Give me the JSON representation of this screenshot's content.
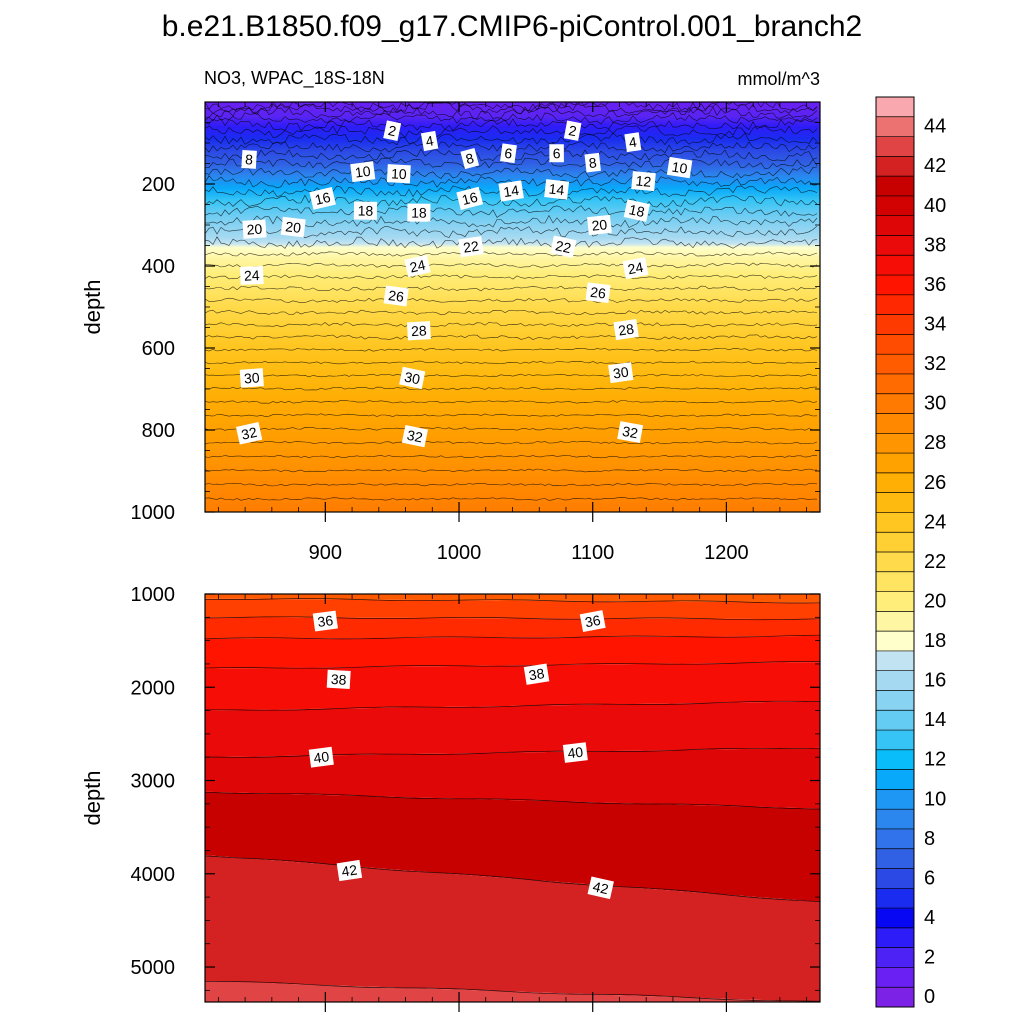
{
  "chart_data": {
    "type": "contour",
    "title": "b.e21.B1850.f09_g17.CMIP6-piControl.001_branch2",
    "variable_label": "NO3, WPAC_18S-18N",
    "units_label": "mmol/m^3",
    "colorbar": {
      "levels": [
        0,
        2,
        4,
        6,
        8,
        10,
        12,
        14,
        16,
        18,
        20,
        22,
        24,
        26,
        28,
        30,
        32,
        34,
        36,
        38,
        40,
        42,
        44
      ],
      "tick_labels": [
        "0",
        "2",
        "4",
        "6",
        "8",
        "10",
        "12",
        "14",
        "16",
        "18",
        "20",
        "22",
        "24",
        "26",
        "28",
        "30",
        "32",
        "34",
        "36",
        "38",
        "40",
        "42",
        "44"
      ],
      "colors": [
        "#7B22E6",
        "#6A20F2",
        "#4C22F5",
        "#2E1CF8",
        "#0707F4",
        "#1A2CF0",
        "#2B4AE5",
        "#3060E3",
        "#3073EA",
        "#2B86EE",
        "#1E97F4",
        "#08A8FA",
        "#08BDF9",
        "#35C4F5",
        "#64CBF3",
        "#88D2F2",
        "#A5D9F1",
        "#C1E3F2",
        "#FFFFCC",
        "#FFF6A4",
        "#FFEE79",
        "#FFE462",
        "#FFDA4A",
        "#FFD034",
        "#FFC520",
        "#FFBA10",
        "#FFAE04",
        "#FFA200",
        "#FF9500",
        "#FF8800",
        "#FF7A00",
        "#FF6B00",
        "#FF5C00",
        "#FF4C00",
        "#FF3A00",
        "#FF2800",
        "#FF1400",
        "#F60E06",
        "#EA0A0A",
        "#DE0606",
        "#D20202",
        "#C70000",
        "#D42222",
        "#E04444",
        "#EC7272",
        "#F8A8AE"
      ]
    },
    "panels": [
      {
        "name": "upper",
        "xlim": [
          810,
          1270
        ],
        "ylim": [
          1000,
          0
        ],
        "x_ticks": [
          900,
          1000,
          1100,
          1200
        ],
        "y_ticks": [
          200,
          400,
          600,
          800,
          1000
        ],
        "ylabel": "depth",
        "contour_labels": [
          {
            "text": "2",
            "x": 950,
            "y": 70
          },
          {
            "text": "4",
            "x": 978,
            "y": 95
          },
          {
            "text": "2",
            "x": 1085,
            "y": 70
          },
          {
            "text": "4",
            "x": 1130,
            "y": 98
          },
          {
            "text": "8",
            "x": 843,
            "y": 140
          },
          {
            "text": "10",
            "x": 928,
            "y": 170
          },
          {
            "text": "10",
            "x": 955,
            "y": 175
          },
          {
            "text": "8",
            "x": 1008,
            "y": 138
          },
          {
            "text": "6",
            "x": 1037,
            "y": 125
          },
          {
            "text": "6",
            "x": 1073,
            "y": 125
          },
          {
            "text": "8",
            "x": 1100,
            "y": 148
          },
          {
            "text": "10",
            "x": 1165,
            "y": 160
          },
          {
            "text": "12",
            "x": 1138,
            "y": 193
          },
          {
            "text": "16",
            "x": 898,
            "y": 235
          },
          {
            "text": "18",
            "x": 930,
            "y": 265
          },
          {
            "text": "18",
            "x": 970,
            "y": 270
          },
          {
            "text": "16",
            "x": 1008,
            "y": 235
          },
          {
            "text": "14",
            "x": 1039,
            "y": 217
          },
          {
            "text": "14",
            "x": 1073,
            "y": 213
          },
          {
            "text": "18",
            "x": 1133,
            "y": 265
          },
          {
            "text": "20",
            "x": 847,
            "y": 310
          },
          {
            "text": "20",
            "x": 876,
            "y": 305
          },
          {
            "text": "20",
            "x": 1105,
            "y": 300
          },
          {
            "text": "22",
            "x": 1009,
            "y": 353
          },
          {
            "text": "22",
            "x": 1078,
            "y": 353
          },
          {
            "text": "24",
            "x": 845,
            "y": 423
          },
          {
            "text": "24",
            "x": 969,
            "y": 400
          },
          {
            "text": "24",
            "x": 1132,
            "y": 405
          },
          {
            "text": "26",
            "x": 953,
            "y": 473
          },
          {
            "text": "26",
            "x": 1104,
            "y": 465
          },
          {
            "text": "28",
            "x": 970,
            "y": 558
          },
          {
            "text": "28",
            "x": 1125,
            "y": 555
          },
          {
            "text": "30",
            "x": 845,
            "y": 673
          },
          {
            "text": "30",
            "x": 965,
            "y": 673
          },
          {
            "text": "30",
            "x": 1121,
            "y": 660
          },
          {
            "text": "32",
            "x": 843,
            "y": 808
          },
          {
            "text": "32",
            "x": 967,
            "y": 815
          },
          {
            "text": "32",
            "x": 1128,
            "y": 805
          }
        ]
      },
      {
        "name": "lower",
        "xlim": [
          810,
          1270
        ],
        "ylim": [
          5375,
          1000
        ],
        "x_ticks": [
          900,
          1000,
          1100,
          1200
        ],
        "y_ticks": [
          1000,
          2000,
          3000,
          4000,
          5000
        ],
        "ylabel": "depth",
        "contour_labels": [
          {
            "text": "36",
            "x": 900,
            "y": 1290
          },
          {
            "text": "36",
            "x": 1100,
            "y": 1290
          },
          {
            "text": "38",
            "x": 910,
            "y": 1915
          },
          {
            "text": "38",
            "x": 1058,
            "y": 1860
          },
          {
            "text": "40",
            "x": 897,
            "y": 2750
          },
          {
            "text": "40",
            "x": 1087,
            "y": 2700
          },
          {
            "text": "42",
            "x": 918,
            "y": 3965
          },
          {
            "text": "42",
            "x": 1106,
            "y": 4150
          }
        ]
      }
    ]
  }
}
